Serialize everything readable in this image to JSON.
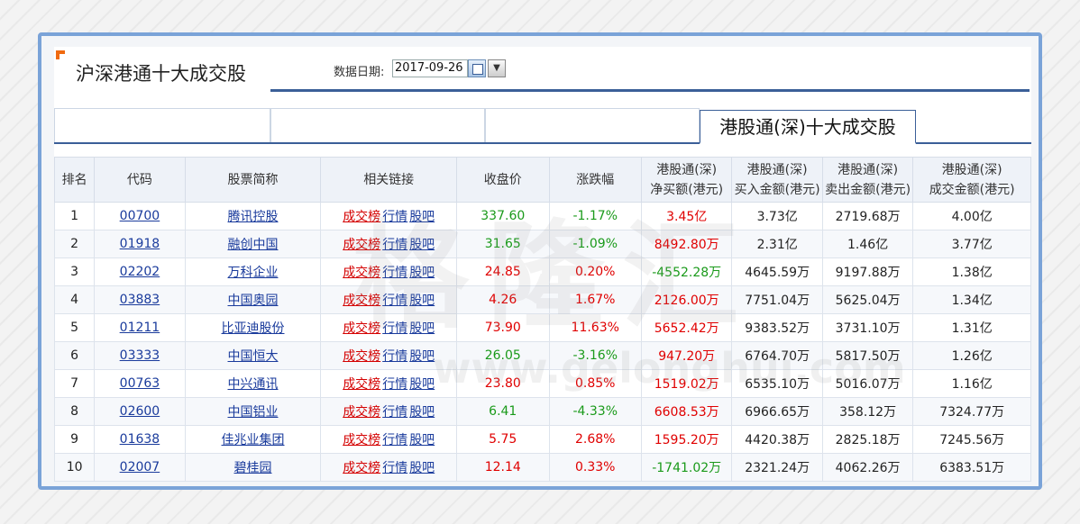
{
  "header": {
    "title": "沪深港通十大成交股",
    "date_label": "数据日期:",
    "date_value": "2017-09-26",
    "active_tab": "港股通(深)十大成交股"
  },
  "watermark": {
    "logo_text": "格隆汇",
    "url_text": "www.gelonghui.com"
  },
  "table": {
    "headers": [
      "排名",
      "代码",
      "股票简称",
      "相关链接",
      "收盘价",
      "涨跌幅",
      "港股通(深)\n净买额(港元)",
      "港股通(深)\n买入金额(港元)",
      "港股通(深)\n卖出金额(港元)",
      "港股通(深)\n成交金额(港元)"
    ],
    "link_labels": [
      "成交榜",
      "行情",
      "股吧"
    ],
    "rows": [
      {
        "rank": "1",
        "code": "00700",
        "name": "腾讯控股",
        "close": "337.60",
        "change": "-1.17%",
        "net": "3.45亿",
        "buy": "3.73亿",
        "sell": "2719.68万",
        "total": "4.00亿",
        "close_dir": "down",
        "change_dir": "down",
        "net_dir": "up"
      },
      {
        "rank": "2",
        "code": "01918",
        "name": "融创中国",
        "close": "31.65",
        "change": "-1.09%",
        "net": "8492.80万",
        "buy": "2.31亿",
        "sell": "1.46亿",
        "total": "3.77亿",
        "close_dir": "down",
        "change_dir": "down",
        "net_dir": "up"
      },
      {
        "rank": "3",
        "code": "02202",
        "name": "万科企业",
        "close": "24.85",
        "change": "0.20%",
        "net": "-4552.28万",
        "buy": "4645.59万",
        "sell": "9197.88万",
        "total": "1.38亿",
        "close_dir": "up",
        "change_dir": "up",
        "net_dir": "down"
      },
      {
        "rank": "4",
        "code": "03883",
        "name": "中国奥园",
        "close": "4.26",
        "change": "1.67%",
        "net": "2126.00万",
        "buy": "7751.04万",
        "sell": "5625.04万",
        "total": "1.34亿",
        "close_dir": "up",
        "change_dir": "up",
        "net_dir": "up"
      },
      {
        "rank": "5",
        "code": "01211",
        "name": "比亚迪股份",
        "close": "73.90",
        "change": "11.63%",
        "net": "5652.42万",
        "buy": "9383.52万",
        "sell": "3731.10万",
        "total": "1.31亿",
        "close_dir": "up",
        "change_dir": "up",
        "net_dir": "up"
      },
      {
        "rank": "6",
        "code": "03333",
        "name": "中国恒大",
        "close": "26.05",
        "change": "-3.16%",
        "net": "947.20万",
        "buy": "6764.70万",
        "sell": "5817.50万",
        "total": "1.26亿",
        "close_dir": "down",
        "change_dir": "down",
        "net_dir": "up"
      },
      {
        "rank": "7",
        "code": "00763",
        "name": "中兴通讯",
        "close": "23.80",
        "change": "0.85%",
        "net": "1519.02万",
        "buy": "6535.10万",
        "sell": "5016.07万",
        "total": "1.16亿",
        "close_dir": "up",
        "change_dir": "up",
        "net_dir": "up"
      },
      {
        "rank": "8",
        "code": "02600",
        "name": "中国铝业",
        "close": "6.41",
        "change": "-4.33%",
        "net": "6608.53万",
        "buy": "6966.65万",
        "sell": "358.12万",
        "total": "7324.77万",
        "close_dir": "down",
        "change_dir": "down",
        "net_dir": "up"
      },
      {
        "rank": "9",
        "code": "01638",
        "name": "佳兆业集团",
        "close": "5.75",
        "change": "2.68%",
        "net": "1595.20万",
        "buy": "4420.38万",
        "sell": "2825.18万",
        "total": "7245.56万",
        "close_dir": "up",
        "change_dir": "up",
        "net_dir": "up"
      },
      {
        "rank": "10",
        "code": "02007",
        "name": "碧桂园",
        "close": "12.14",
        "change": "0.33%",
        "net": "-1741.02万",
        "buy": "2321.24万",
        "sell": "4062.26万",
        "total": "6383.51万",
        "close_dir": "up",
        "change_dir": "up",
        "net_dir": "down"
      }
    ]
  }
}
